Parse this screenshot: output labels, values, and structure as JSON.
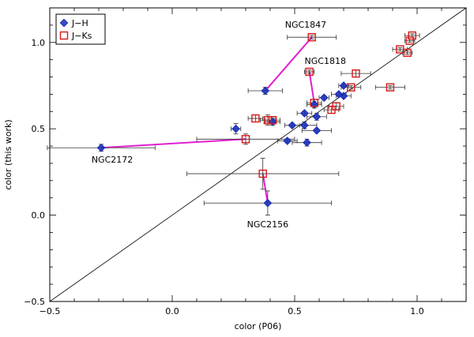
{
  "chart_data": {
    "type": "scatter",
    "title": "",
    "xlabel": "color (P06)",
    "ylabel": "color (this work)",
    "xlim": [
      -0.5,
      1.2
    ],
    "ylim": [
      -0.5,
      1.2
    ],
    "xticks": [
      -0.5,
      0.0,
      0.5,
      1.0
    ],
    "xtick_labels": [
      "−0.5",
      "0.0",
      "0.5",
      "1.0"
    ],
    "yticks": [
      -0.5,
      0.0,
      0.5,
      1.0
    ],
    "ytick_labels": [
      "−0.5",
      "0.0",
      "0.5",
      "1.0"
    ],
    "identity_line": true,
    "legend_position": "top-left",
    "colors": {
      "jh": "#1a2fb8",
      "jh_fill": "#1a2fb8",
      "jks": "#d81818",
      "connector": "#e020d0",
      "errorbar": "#333333"
    },
    "series": [
      {
        "name": "J−H",
        "marker": "diamond",
        "points": [
          {
            "x": -0.29,
            "y": 0.39,
            "xerr": 0.22,
            "yerr": 0.02
          },
          {
            "x": 0.26,
            "y": 0.5,
            "xerr": 0.02,
            "yerr": 0.03
          },
          {
            "x": 0.38,
            "y": 0.72,
            "xerr": 0.07,
            "yerr": 0.02
          },
          {
            "x": 0.39,
            "y": 0.07,
            "xerr": 0.26,
            "yerr": 0.07
          },
          {
            "x": 0.41,
            "y": 0.54,
            "xerr": 0.03,
            "yerr": 0.02
          },
          {
            "x": 0.47,
            "y": 0.43,
            "xerr": 0.04,
            "yerr": 0.01
          },
          {
            "x": 0.49,
            "y": 0.52,
            "xerr": 0.03,
            "yerr": 0.01
          },
          {
            "x": 0.54,
            "y": 0.52,
            "xerr": 0.05,
            "yerr": 0.02
          },
          {
            "x": 0.54,
            "y": 0.59,
            "xerr": 0.03,
            "yerr": 0.01
          },
          {
            "x": 0.55,
            "y": 0.42,
            "xerr": 0.06,
            "yerr": 0.02
          },
          {
            "x": 0.58,
            "y": 0.64,
            "xerr": 0.03,
            "yerr": 0.02
          },
          {
            "x": 0.59,
            "y": 0.57,
            "xerr": 0.04,
            "yerr": 0.02
          },
          {
            "x": 0.59,
            "y": 0.49,
            "xerr": 0.06,
            "yerr": 0.01
          },
          {
            "x": 0.62,
            "y": 0.68,
            "xerr": 0.02,
            "yerr": 0.01
          },
          {
            "x": 0.68,
            "y": 0.7,
            "xerr": 0.03,
            "yerr": 0.01
          },
          {
            "x": 0.7,
            "y": 0.75,
            "xerr": 0.02,
            "yerr": 0.01
          },
          {
            "x": 0.7,
            "y": 0.69,
            "xerr": 0.03,
            "yerr": 0.01
          }
        ]
      },
      {
        "name": "J−Ks",
        "marker": "square",
        "points": [
          {
            "x": 0.3,
            "y": 0.44,
            "xerr": 0.2,
            "yerr": 0.03
          },
          {
            "x": 0.34,
            "y": 0.56,
            "xerr": 0.03,
            "yerr": 0.02
          },
          {
            "x": 0.37,
            "y": 0.24,
            "xerr": 0.31,
            "yerr": 0.09
          },
          {
            "x": 0.39,
            "y": 0.55,
            "xerr": 0.03,
            "yerr": 0.03
          },
          {
            "x": 0.41,
            "y": 0.55,
            "xerr": 0.03,
            "yerr": 0.02
          },
          {
            "x": 0.56,
            "y": 0.83,
            "xerr": 0.02,
            "yerr": 0.01
          },
          {
            "x": 0.57,
            "y": 1.03,
            "xerr": 0.1,
            "yerr": 0.01
          },
          {
            "x": 0.58,
            "y": 0.65,
            "xerr": 0.03,
            "yerr": 0.02
          },
          {
            "x": 0.65,
            "y": 0.61,
            "xerr": 0.03,
            "yerr": 0.02
          },
          {
            "x": 0.67,
            "y": 0.63,
            "xerr": 0.03,
            "yerr": 0.02
          },
          {
            "x": 0.73,
            "y": 0.74,
            "xerr": 0.04,
            "yerr": 0.01
          },
          {
            "x": 0.75,
            "y": 0.82,
            "xerr": 0.06,
            "yerr": 0.02
          },
          {
            "x": 0.89,
            "y": 0.74,
            "xerr": 0.06,
            "yerr": 0.01
          },
          {
            "x": 0.93,
            "y": 0.96,
            "xerr": 0.03,
            "yerr": 0.01
          },
          {
            "x": 0.96,
            "y": 0.94,
            "xerr": 0.02,
            "yerr": 0.01
          },
          {
            "x": 0.97,
            "y": 1.01,
            "xerr": 0.02,
            "yerr": 0.01
          },
          {
            "x": 0.98,
            "y": 1.04,
            "xerr": 0.03,
            "yerr": 0.01
          }
        ]
      }
    ],
    "connectors": [
      {
        "name": "NGC2172",
        "from": {
          "x": -0.29,
          "y": 0.39
        },
        "to": {
          "x": 0.3,
          "y": 0.44
        }
      },
      {
        "name": "NGC1847",
        "from": {
          "x": 0.38,
          "y": 0.72
        },
        "to": {
          "x": 0.57,
          "y": 1.03
        }
      },
      {
        "name": "NGC1818",
        "from": {
          "x": 0.56,
          "y": 0.83
        },
        "to": {
          "x": 0.58,
          "y": 0.65
        }
      },
      {
        "name": "NGC2156",
        "from": {
          "x": 0.37,
          "y": 0.24
        },
        "to": {
          "x": 0.39,
          "y": 0.07
        }
      }
    ],
    "annotations": [
      {
        "text": "NGC1847",
        "x": 0.545,
        "y": 1.085
      },
      {
        "text": "NGC1818",
        "x": 0.625,
        "y": 0.875
      },
      {
        "text": "NGC2172",
        "x": -0.245,
        "y": 0.305
      },
      {
        "text": "NGC2156",
        "x": 0.39,
        "y": -0.07
      }
    ]
  }
}
